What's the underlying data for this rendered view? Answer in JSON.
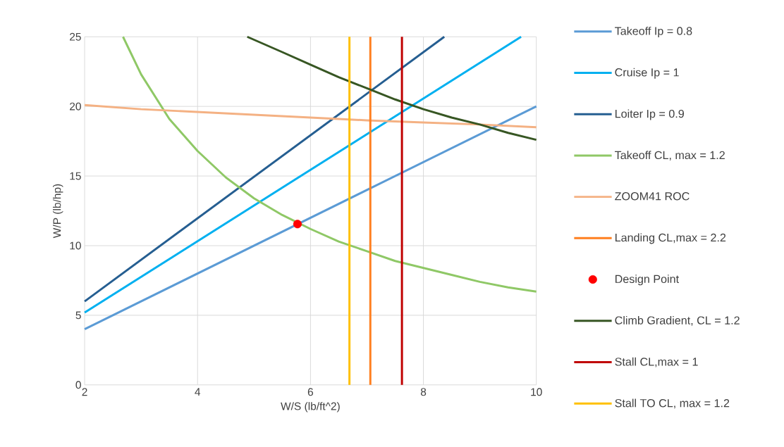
{
  "chart_data": {
    "type": "line",
    "xlabel": "W/S (lb/ft^2)",
    "ylabel": "W/P (lb/hp)",
    "xlim": [
      2,
      10
    ],
    "ylim": [
      0,
      25
    ],
    "xticks": [
      2,
      4,
      6,
      8,
      10
    ],
    "yticks": [
      0,
      5,
      10,
      15,
      20,
      25
    ],
    "grid": true,
    "legend": "right",
    "series": [
      {
        "name": "Takeoff Ip = 0.8",
        "color": "#5b9bd5",
        "x": [
          2,
          10
        ],
        "values": [
          4,
          20
        ]
      },
      {
        "name": "Cruise Ip = 1",
        "color": "#00b0f0",
        "x": [
          2,
          9.73
        ],
        "values": [
          5.2,
          25
        ]
      },
      {
        "name": "Loiter Ip = 0.9",
        "color": "#255e91",
        "x": [
          2,
          8.37
        ],
        "values": [
          6,
          25
        ]
      },
      {
        "name": "Takeoff CL, max = 1.2",
        "color": "#8fc866",
        "x": [
          2.68,
          3,
          3.5,
          4,
          4.5,
          5,
          5.5,
          6,
          6.5,
          7,
          7.5,
          8,
          8.5,
          9,
          9.5,
          10
        ],
        "values": [
          25,
          22.3,
          19.1,
          16.8,
          14.9,
          13.4,
          12.2,
          11.2,
          10.3,
          9.6,
          8.9,
          8.4,
          7.9,
          7.4,
          7.0,
          6.7
        ]
      },
      {
        "name": "ZOOM41 ROC",
        "color": "#f4b183",
        "x": [
          2,
          3,
          4,
          5,
          6,
          7,
          8,
          9,
          10
        ],
        "values": [
          20.1,
          19.8,
          19.6,
          19.4,
          19.2,
          19.0,
          18.85,
          18.7,
          18.5
        ]
      },
      {
        "name": "Landing CL,max = 2.2",
        "color": "#ff7f1f",
        "x": [
          7.06,
          7.06
        ],
        "values": [
          0,
          25
        ]
      },
      {
        "name": "Design Point",
        "type": "scatter",
        "marker": "circle",
        "color": "#ff0000",
        "x": [
          5.77
        ],
        "values": [
          11.55
        ]
      },
      {
        "name": "Climb Gradient, CL = 1.2",
        "color": "#375623",
        "x": [
          4.88,
          5.5,
          6,
          6.5,
          7,
          7.5,
          8,
          8.5,
          9,
          9.5,
          10
        ],
        "values": [
          25,
          23.9,
          23.0,
          22.1,
          21.3,
          20.5,
          19.8,
          19.2,
          18.7,
          18.1,
          17.6
        ]
      },
      {
        "name": "Stall CL,max = 1",
        "color": "#c00000",
        "x": [
          7.62,
          7.62
        ],
        "values": [
          0,
          25
        ]
      },
      {
        "name": "Stall TO CL, max = 1.2",
        "color": "#ffc000",
        "x": [
          6.69,
          6.69
        ],
        "values": [
          0,
          25
        ]
      }
    ]
  }
}
